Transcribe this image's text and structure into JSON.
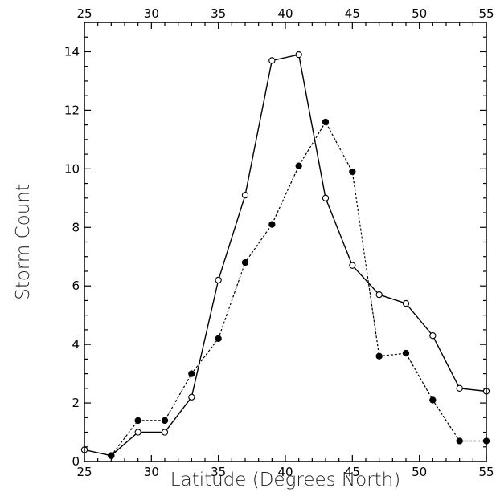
{
  "chart_data": {
    "type": "line",
    "xlabel": "Latitude (Degrees North)",
    "ylabel": "Storm Count",
    "xlim": [
      25,
      55
    ],
    "ylim": [
      0,
      15
    ],
    "x_ticks": [
      25,
      30,
      35,
      40,
      45,
      50,
      55
    ],
    "x_tick_labels": [
      "25",
      "30",
      "35",
      "40",
      "45",
      "50",
      "55"
    ],
    "y_ticks": [
      0,
      2,
      4,
      6,
      8,
      10,
      12,
      14
    ],
    "y_tick_labels": [
      "0",
      "2",
      "4",
      "6",
      "8",
      "10",
      "12",
      "14"
    ],
    "top_axis_labels": true,
    "grid": false,
    "series": [
      {
        "line_style": "solid",
        "marker": "open-circle",
        "x": [
          25,
          27,
          29,
          31,
          33,
          35,
          37,
          39,
          41,
          43,
          45,
          47,
          49,
          51,
          53,
          55
        ],
        "y": [
          0.4,
          0.2,
          1.0,
          1.0,
          2.2,
          6.2,
          9.1,
          13.7,
          13.9,
          9.0,
          6.7,
          5.7,
          5.4,
          4.3,
          2.5,
          2.4
        ]
      },
      {
        "line_style": "dashed",
        "marker": "filled-circle",
        "x": [
          27,
          29,
          31,
          33,
          35,
          37,
          39,
          41,
          43,
          45,
          47,
          49,
          51,
          53,
          55
        ],
        "y": [
          0.2,
          1.4,
          1.4,
          3.0,
          4.2,
          6.8,
          8.1,
          10.1,
          11.6,
          9.9,
          3.6,
          3.7,
          2.1,
          0.7,
          0.7
        ]
      }
    ],
    "colors": {
      "stroke": "#000000",
      "background": "#ffffff"
    }
  }
}
